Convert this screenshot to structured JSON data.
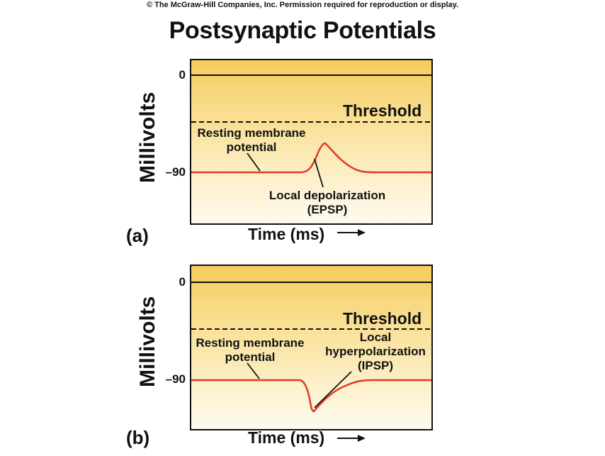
{
  "copyright": "© The McGraw-Hill Companies, Inc. Permission required for reproduction or display.",
  "title": "Postsynaptic Potentials",
  "colors": {
    "trace": "#e23a24",
    "plot_top": "#f4c95a",
    "plot_bottom": "#fffbe8",
    "axis": "#111111"
  },
  "panels": [
    {
      "id": "a",
      "panel_label": "(a)",
      "ylabel": "Millivolts",
      "ticks": {
        "zero": "0",
        "resting": "–90"
      },
      "threshold_label": "Threshold",
      "resting_label_line1": "Resting membrane",
      "resting_label_line2": "potential",
      "event_label_line1": "Local depolarization",
      "event_label_line2": "(EPSP)",
      "event_label_line3": "",
      "xlabel": "Time (ms)",
      "event_type": "depolarization"
    },
    {
      "id": "b",
      "panel_label": "(b)",
      "ylabel": "Millivolts",
      "ticks": {
        "zero": "0",
        "resting": "–90"
      },
      "threshold_label": "Threshold",
      "resting_label_line1": "Resting membrane",
      "resting_label_line2": "potential",
      "event_label_line1": "Local",
      "event_label_line2": "hyperpolarization",
      "event_label_line3": "(IPSP)",
      "xlabel": "Time (ms)",
      "event_type": "hyperpolarization"
    }
  ]
}
